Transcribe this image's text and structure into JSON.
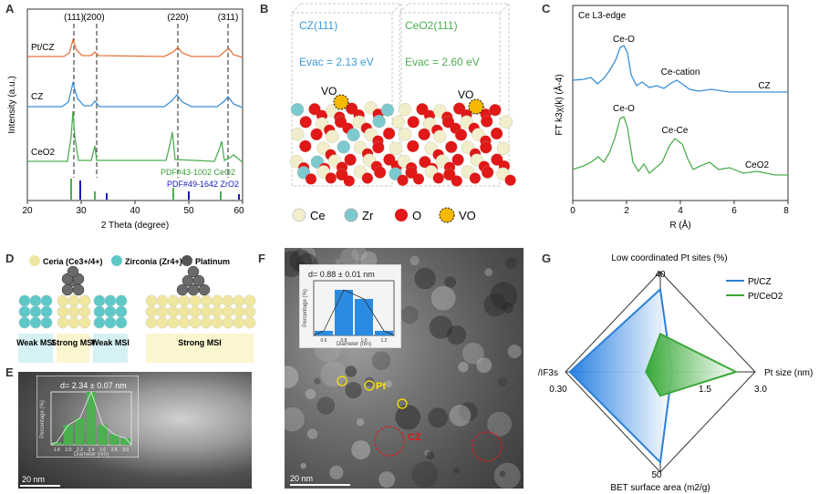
{
  "panels": {
    "A": "A",
    "B": "B",
    "C": "C",
    "D": "D",
    "E": "E",
    "F": "F",
    "G": "G"
  },
  "A": {
    "ylabel": "Intensity (a.u.)",
    "xlabel": "2 Theta (degree)",
    "xticks": [
      "20",
      "30",
      "40",
      "50",
      "60"
    ],
    "peaks": [
      "(111)",
      "(200)",
      "(220)",
      "(311)"
    ],
    "traces": [
      "Pt/CZ",
      "CZ",
      "CeO2"
    ],
    "pdf1": "PDF#43-1002  CeO2",
    "pdf2": "PDF#49-1642  ZrO2",
    "colors": {
      "ptcz": "#e8733a",
      "cz": "#3b8fd6",
      "ceo2": "#4caf50",
      "zro2": "#1a1ab8"
    }
  },
  "B": {
    "cz_title": "CZ(111)",
    "cz_evac": "Evac = 2.13 eV",
    "ceo2_title": "CeO2(111)",
    "ceo2_evac": "Evac = 2.60 eV",
    "vo": "VO",
    "legend": [
      "Ce",
      "Zr",
      "O",
      "VO"
    ]
  },
  "C": {
    "title": "Ce L3-edge",
    "ylabel": "FT k3χ(k) (Å-4)",
    "xlabel": "R (Å)",
    "xticks": [
      "0",
      "2",
      "4",
      "6",
      "8"
    ],
    "cz_labels": [
      "Ce-O",
      "Ce-cation",
      "CZ"
    ],
    "ceo2_labels": [
      "Ce-O",
      "Ce-Ce",
      "CeO2"
    ]
  },
  "D": {
    "legend": [
      "Ceria (Ce3+/4+)",
      "Zirconia (Zr4+)",
      "Platinum"
    ],
    "msi": [
      "Weak MSI",
      "Strong MSI",
      "Weak MSI",
      "Strong MSI"
    ]
  },
  "E": {
    "inset_title": "d= 2.34 ± 0.07 nm",
    "inset_ylabel": "Percentage (%)",
    "inset_xlabel": "Diameter (nm)",
    "scale": "20 nm",
    "chart_data": {
      "type": "bar",
      "categories": [
        "1.8",
        "2.0",
        "2.2",
        "2.4",
        "2.6",
        "2.8",
        "3.0"
      ],
      "values": [
        2,
        15,
        20,
        40,
        15,
        8,
        5
      ],
      "ylim": [
        0,
        40
      ]
    }
  },
  "F": {
    "inset_title": "d= 0.88 ± 0.01 nm",
    "inset_ylabel": "Percentage (%)",
    "inset_xlabel": "Diameter (nm)",
    "pt": "Pt",
    "cz": "CZ",
    "scale": "20 nm",
    "chart_data": {
      "type": "bar",
      "categories": [
        "0.6",
        "0.8",
        "1.0",
        "1.2"
      ],
      "values": [
        5,
        50,
        40,
        5
      ],
      "ylim": [
        0,
        60
      ]
    }
  },
  "G": {
    "chart_data": {
      "type": "radar",
      "axes": [
        {
          "label": "Low coordinated Pt sites (%)",
          "max_label": "40"
        },
        {
          "label": "Pt size (nm)",
          "min_label": "1.5",
          "max_label": "3.0"
        },
        {
          "label": "BET surface area (m2/g)",
          "max_label": "50"
        },
        {
          "label": "IC/IF3s",
          "max_label": "0.30"
        }
      ],
      "series": [
        {
          "name": "Pt/CZ",
          "values": [
            0.86,
            0.05,
            0.95,
            0.95
          ],
          "color": "#2a7fd8"
        },
        {
          "name": "Pt/CeO2",
          "values": [
            0.35,
            0.78,
            0.19,
            0.08
          ],
          "color": "#3aa83a"
        }
      ]
    }
  }
}
